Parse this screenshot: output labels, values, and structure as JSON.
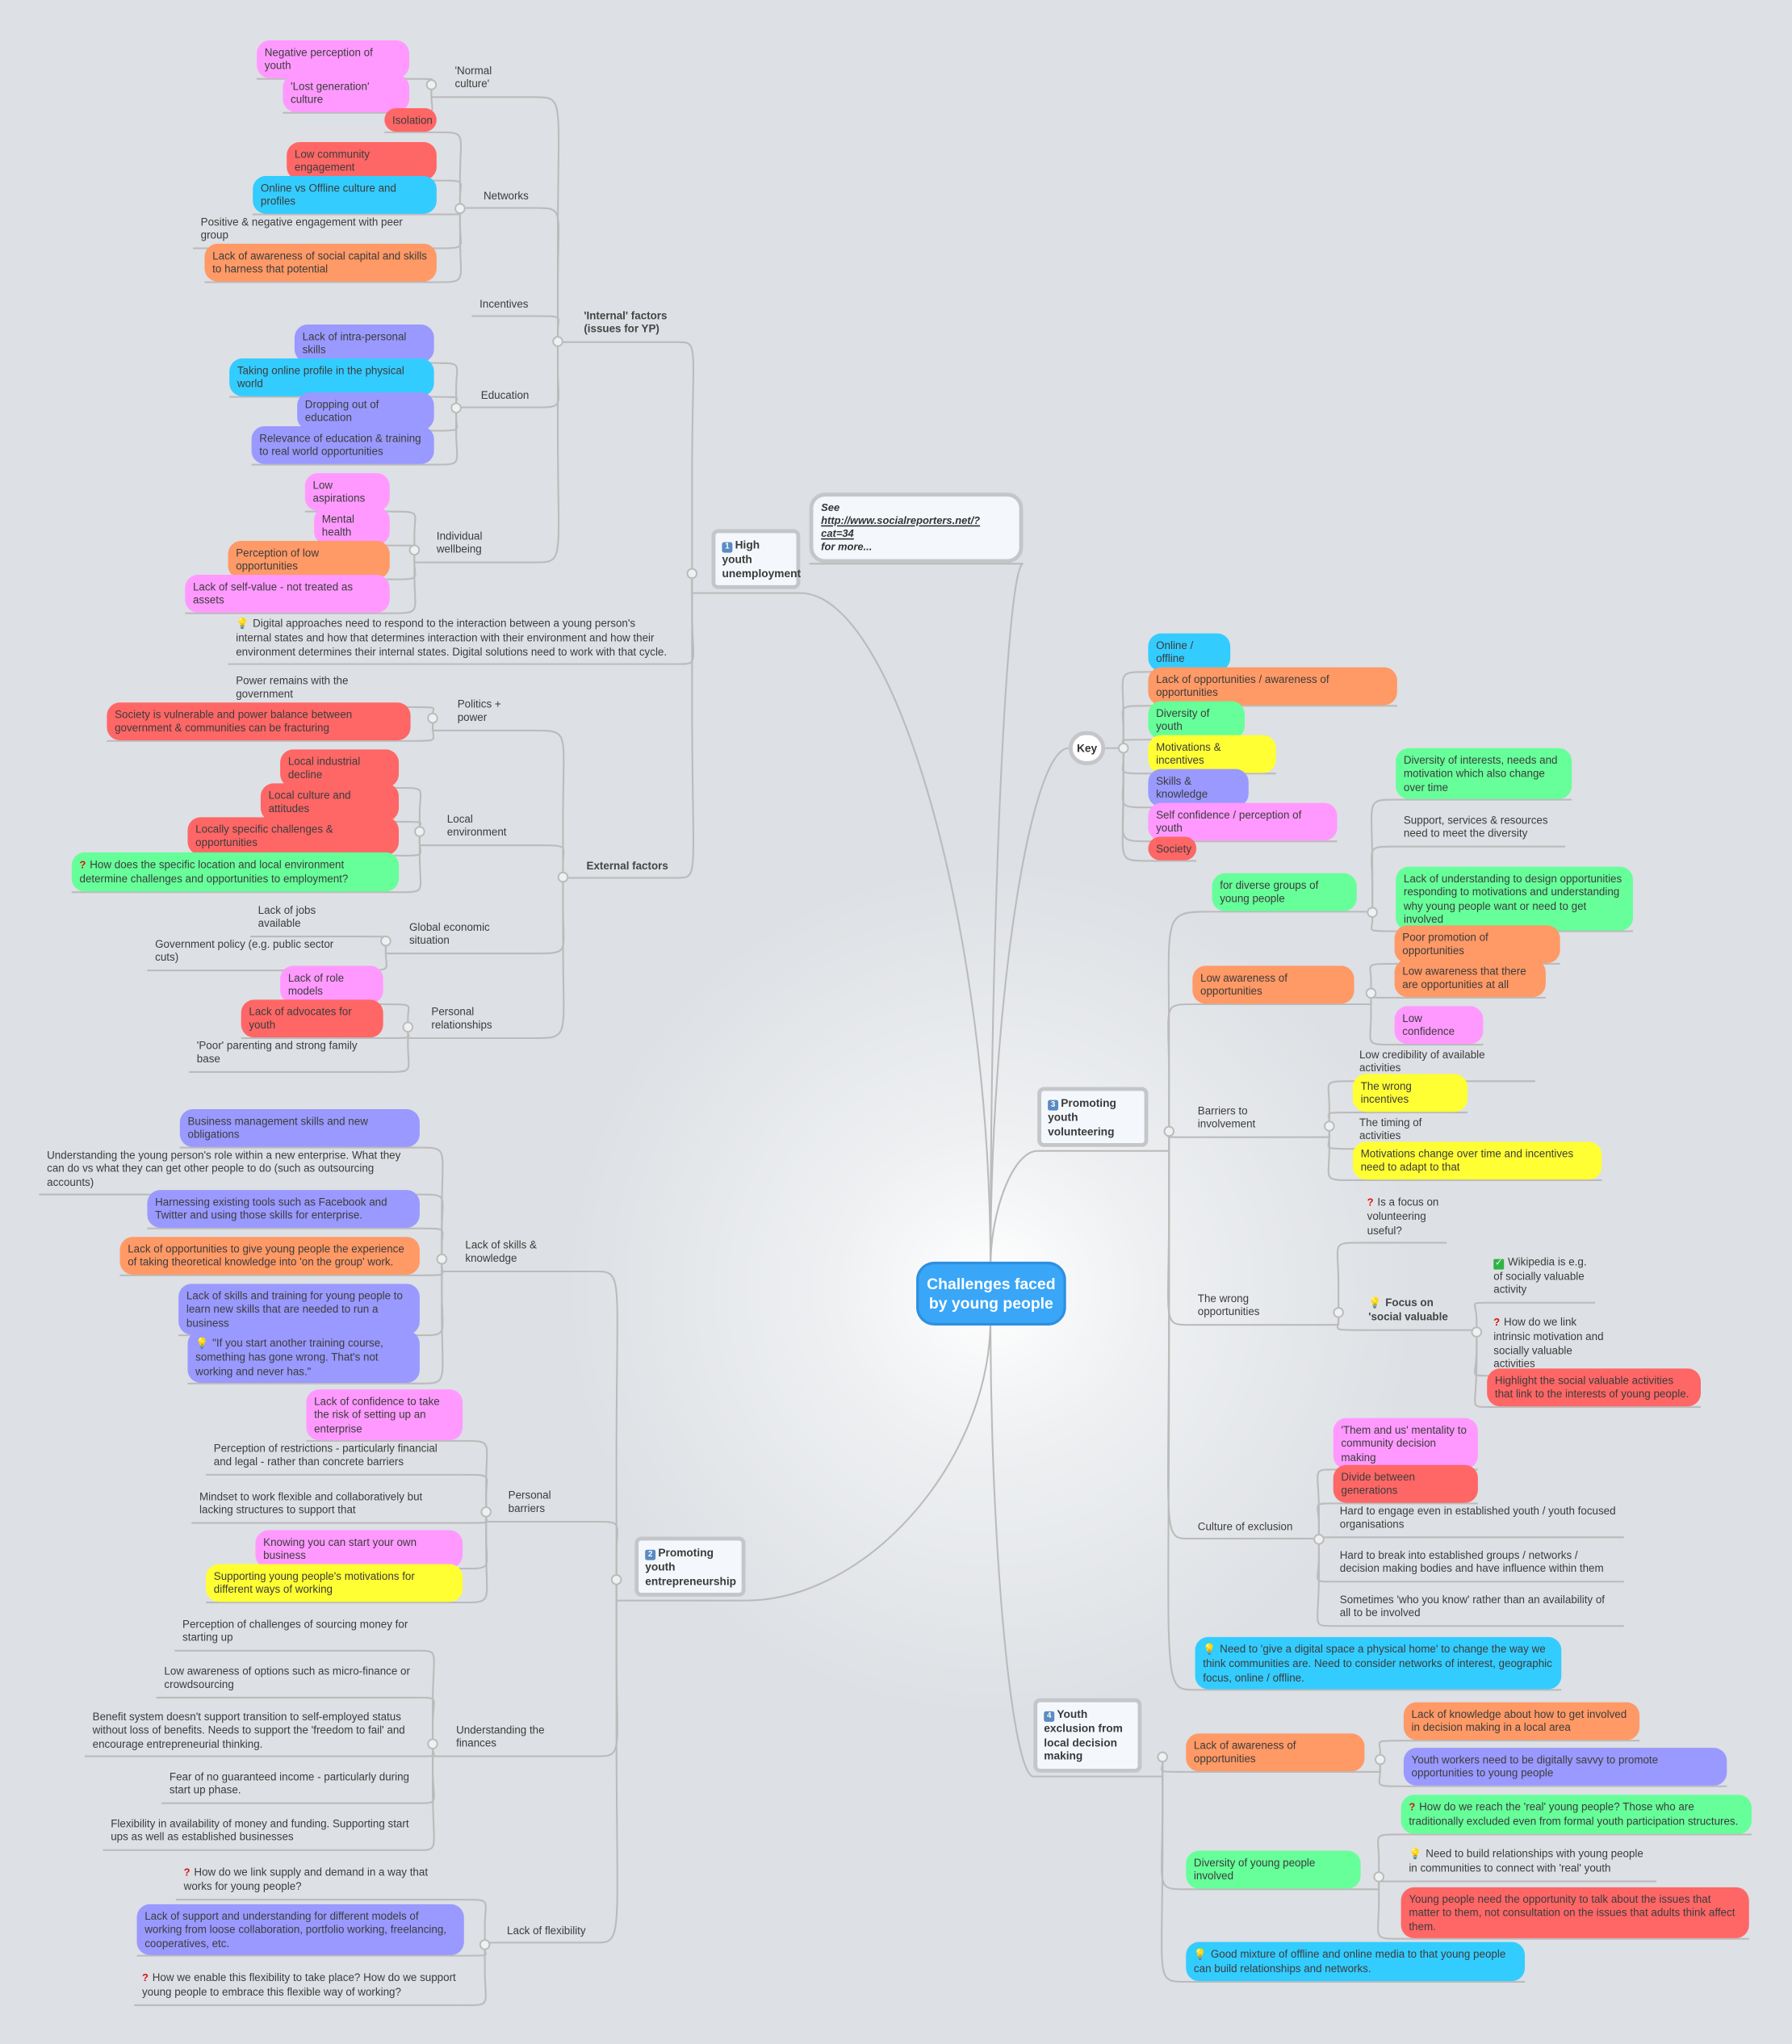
{
  "root": "Challenges faced by young people",
  "colors": {
    "online_offline": "#33ccff",
    "opportunities": "#ff9966",
    "diversity": "#66ff99",
    "motivations": "#ffff33",
    "skills": "#9999ff",
    "self_confidence": "#ff99ff",
    "society": "#ff6666",
    "root": "#3aa6f7",
    "connector": "#bbbbbb",
    "background": "#dde0e4"
  },
  "note": {
    "see": "See",
    "link": "http://www.socialreporters.net/?cat=34",
    "more": "for more..."
  },
  "key": {
    "label": "Key",
    "items": [
      "Online / offline",
      "Lack of opportunities / awareness of opportunities",
      "Diversity of youth",
      "Motivations & incentives",
      "Skills & knowledge",
      "Self confidence / perception of youth",
      "Society"
    ]
  },
  "unemployment": {
    "number": "1",
    "label": "High youth unemployment",
    "internal": {
      "label": "'Internal' factors (issues for YP)",
      "normal_culture": {
        "label": "'Normal culture'",
        "items": [
          "Negative perception of youth",
          "'Lost generation' culture"
        ]
      },
      "networks": {
        "label": "Networks",
        "items": [
          "Isolation",
          "Low community engagement",
          "Online vs Offline culture and profiles",
          "Positive & negative engagement with peer group",
          "Lack of awareness of social capital and skills to harness that potential"
        ]
      },
      "incentives": {
        "label": "Incentives"
      },
      "education": {
        "label": "Education",
        "items": [
          "Lack of intra-personal skills",
          "Taking online profile in the physical world",
          "Dropping out of education",
          "Relevance of education & training to real world opportunities"
        ]
      },
      "wellbeing": {
        "label": "Individual wellbeing",
        "items": [
          "Low aspirations",
          "Mental health",
          "Perception of low opportunities",
          "Lack of self-value -  not treated as assets"
        ]
      }
    },
    "digital_note": "Digital approaches need to respond to the interaction between a young person's internal states and how that determines interaction with their environment and how their environment determines their internal states. Digital solutions need to work with that cycle.",
    "external": {
      "label": "External factors",
      "politics": {
        "label": "Politics + power",
        "items": [
          "Power remains with the government",
          "Society is vulnerable and power balance between government & communities can be fracturing"
        ]
      },
      "local": {
        "label": "Local environment",
        "items": [
          "Local industrial decline",
          "Local culture and attitudes",
          "Locally specific challenges & opportunities",
          "How does the specific location and local environment determine challenges and opportunities to employment?"
        ]
      },
      "global": {
        "label": "Global economic situation",
        "items": [
          "Lack of jobs available",
          "Government policy (e.g. public sector cuts)"
        ]
      },
      "personal": {
        "label": "Personal relationships",
        "items": [
          "Lack of role models",
          "Lack of advocates for youth",
          "'Poor' parenting and strong family base"
        ]
      }
    }
  },
  "entrepreneurship": {
    "number": "2",
    "label": "Promoting youth entrepreneurship",
    "skills": {
      "label": "Lack of skills & knowledge",
      "items": [
        "Business management skills and new obligations",
        "Understanding the young person's role within a new enterprise. What they can do vs what they can get other people to do (such as outsourcing accounts)",
        "Harnessing existing tools such as Facebook and Twitter and using those skills for enterprise.",
        "Lack of opportunities to give young people the experience of taking theoretical knowledge into 'on the group' work.",
        "Lack of skills and training for young people to learn new skills that are needed to run a business",
        "\"If you start another training course, something has gone wrong. That's not working and never has.\""
      ]
    },
    "barriers": {
      "label": "Personal barriers",
      "items": [
        "Lack of confidence to take the risk of setting up an enterprise",
        "Perception of restrictions - particularly financial and legal  - rather than concrete barriers",
        "Mindset to work flexible and collaboratively but lacking structures to support that",
        "Knowing you can start your own business",
        "Supporting young people's motivations for different ways of working"
      ]
    },
    "finances": {
      "label": "Understanding the finances",
      "items": [
        "Perception of challenges of sourcing money for starting up",
        "Low awareness of options such as micro-finance or crowdsourcing",
        "Benefit system doesn't support transition to self-employed status without loss of benefits. Needs to support the 'freedom to fail' and encourage entrepreneurial thinking.",
        "Fear of no guaranteed income - particularly during start up phase.",
        "Flexibility in availability of money and funding. Supporting start ups as well as established businesses"
      ]
    },
    "flexibility": {
      "label": "Lack of flexibility",
      "items": [
        "How do we link supply and demand in a way that works for young people?",
        "Lack of support and understanding for different models of working from loose collaboration, portfolio working, freelancing, cooperatives, etc.",
        "How we enable this flexibility to take place? How do we support young people to embrace this flexible way of working?"
      ]
    }
  },
  "volunteering": {
    "number": "3",
    "label": "Promoting youth volunteering",
    "diverse": {
      "label": "for diverse groups of young people",
      "items": [
        "Diversity of interests, needs and motivation which also change over time",
        "Support, services & resources need to meet the diversity",
        "Lack of understanding to design opportunities responding to motivations and understanding why young people want or need to get involved"
      ]
    },
    "awareness": {
      "label": "Low awareness of opportunities",
      "items": [
        "Poor promotion of opportunities",
        "Low awareness that there are opportunities at all",
        "Low confidence"
      ]
    },
    "barriers": {
      "label": "Barriers to involvement",
      "items": [
        "Low credibility of available activities",
        "The wrong incentives",
        "The timing of activities",
        "Motivations change over time and incentives need to adapt to that"
      ]
    },
    "wrong_opportunities": {
      "label": "The wrong opportunities",
      "question": "Is a focus on volunteering useful?",
      "focus": {
        "label": "Focus on 'social valuable",
        "items": [
          "Wikipedia is e.g. of socially valuable activity",
          "How do we link intrinsic motivation and socially valuable activities",
          "Highlight the social valuable activities that link to the interests of young people."
        ]
      }
    },
    "exclusion": {
      "label": "Culture of exclusion",
      "items": [
        "'Them and us' mentality to community decision making",
        "Divide between generations",
        "Hard to engage even in established youth / youth focused organisations",
        "Hard to break into established groups / networks / decision making bodies and have influence within them",
        "Sometimes 'who you know' rather than an availability of all to be involved"
      ]
    },
    "digital_home": "Need to 'give a digital space a physical home' to change the way we think communities are. Need to consider networks of interest, geographic focus, online / offline."
  },
  "exclusion": {
    "number": "4",
    "label": "Youth exclusion from local decision making",
    "awareness": {
      "label": "Lack of awareness of opportunities",
      "items": [
        "Lack of knowledge about how to get involved in decision making in a local area",
        "Youth workers need to be digitally savvy to promote opportunities to young people"
      ]
    },
    "diversity": {
      "label": "Diversity of young people involved",
      "items": [
        "How do we reach the 'real' young people? Those who are traditionally excluded even from formal youth participation structures.",
        "Need to build relationships with young people in communities to connect with 'real' youth",
        "Young people need the opportunity to talk about the issues that matter to them, not consultation on the issues that adults think affect them."
      ]
    },
    "media": "Good mixture of offline and online media to that young people can build relationships and networks."
  }
}
